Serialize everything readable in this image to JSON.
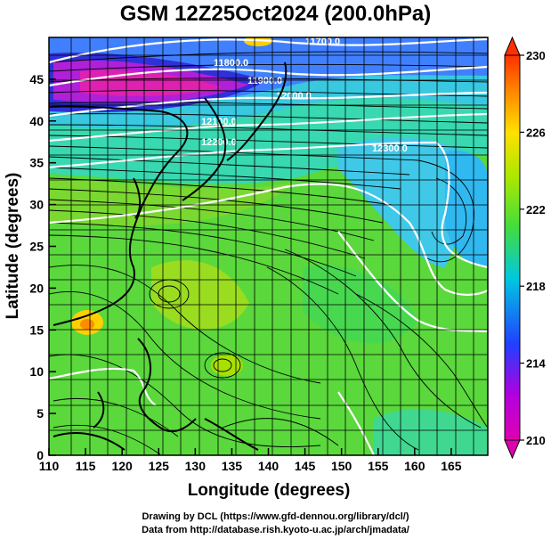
{
  "title": "GSM 12Z25Oct2024 (200.0hPa)",
  "credits": {
    "line1": "Drawing by DCL (https://www.gfd-dennou.org/library/dcl/)",
    "line2": "Data from http://database.rish.kyoto-u.ac.jp/arch/jmadata/"
  },
  "chart_data": {
    "type": "heatmap",
    "xlabel": "Longitude (degrees)",
    "ylabel": "Latitude (degrees)",
    "xlim": [
      110,
      170
    ],
    "ylim": [
      0,
      50
    ],
    "x_ticks": [
      "110",
      "115",
      "120",
      "125",
      "130",
      "135",
      "140",
      "145",
      "150",
      "155",
      "160",
      "165"
    ],
    "y_ticks": [
      "0",
      "5",
      "10",
      "15",
      "20",
      "25",
      "30",
      "35",
      "40",
      "45"
    ],
    "colorbar": {
      "min": 210,
      "max": 230,
      "tick_labels": [
        "210",
        "214",
        "218",
        "222",
        "226",
        "230"
      ],
      "colors": [
        "#e000b0",
        "#b000e0",
        "#2040ff",
        "#00c8e0",
        "#40dc40",
        "#a8e800",
        "#ffe000",
        "#ff8c00",
        "#ff3000"
      ]
    },
    "contour_labels": [
      "11700.0",
      "11800.0",
      "11900.0",
      "12000.0",
      "12100.0",
      "12200.0",
      "12300.0"
    ],
    "overlays": [
      "streamlines",
      "geopotential-height-contours",
      "coastlines",
      "grid"
    ],
    "grid": true
  }
}
